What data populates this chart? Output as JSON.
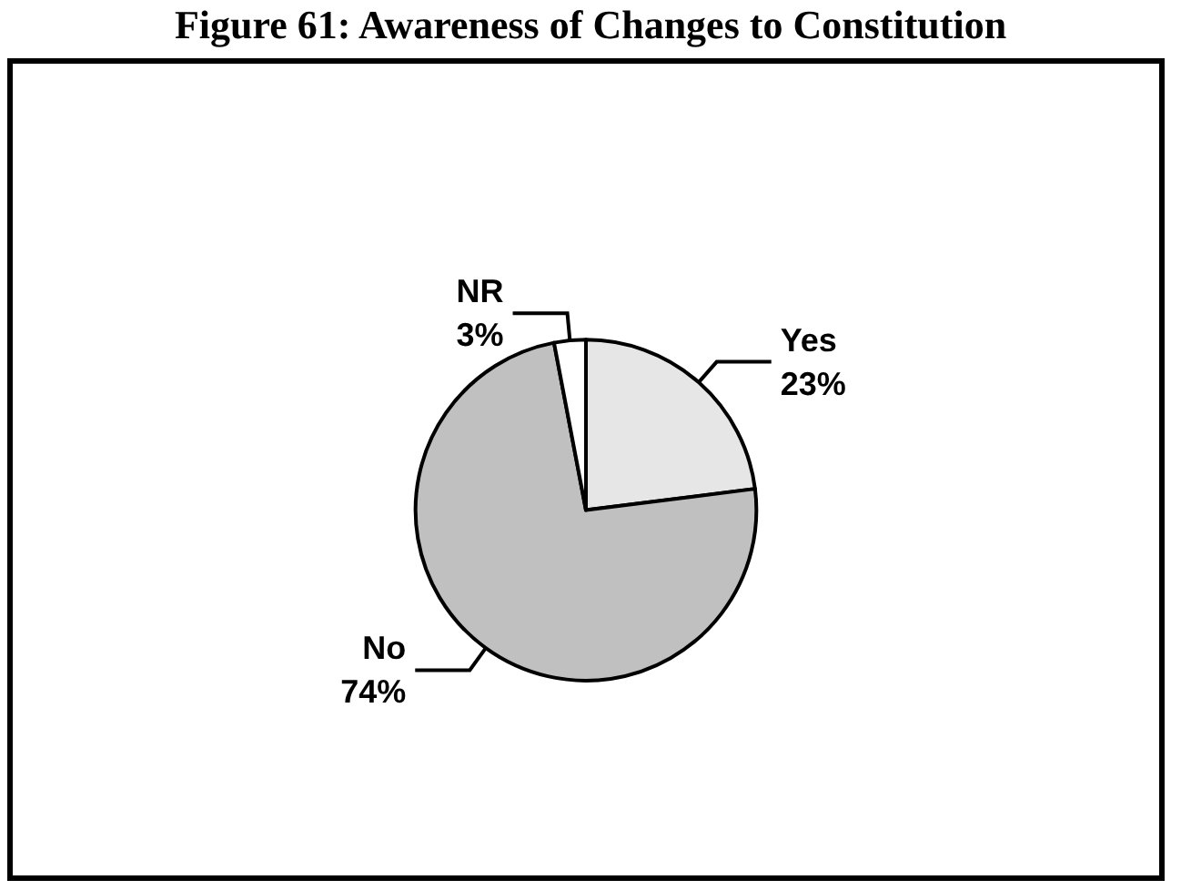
{
  "chart_data": {
    "type": "pie",
    "title": "Figure 61: Awareness of Changes to Constitution",
    "categories": [
      "Yes",
      "No",
      "NR"
    ],
    "values": [
      23,
      74,
      3
    ],
    "colors": [
      "#e6e6e6",
      "#c0c0c0",
      "#ffffff"
    ],
    "value_labels": [
      "23%",
      "74%",
      "3%"
    ]
  }
}
